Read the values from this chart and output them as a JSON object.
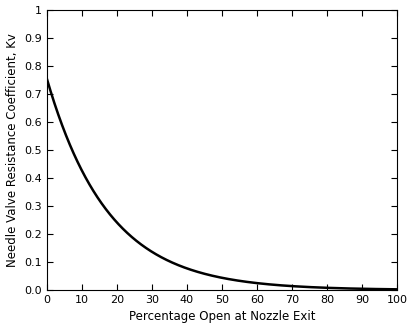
{
  "title": "",
  "xlabel": "Percentage Open at Nozzle Exit",
  "ylabel": "Needle Valve Resistance Coefficient, Kv",
  "xlim": [
    0,
    100
  ],
  "ylim": [
    0,
    1
  ],
  "xticks": [
    0,
    10,
    20,
    30,
    40,
    50,
    60,
    70,
    80,
    90,
    100
  ],
  "yticks": [
    0,
    0.1,
    0.2,
    0.3,
    0.4,
    0.5,
    0.6,
    0.7,
    0.8,
    0.9,
    1.0
  ],
  "curve_start_y": 0.755,
  "decay_rate": 0.057,
  "line_color": "#000000",
  "line_width": 1.8,
  "background_color": "#ffffff",
  "tick_label_fontsize": 8,
  "axis_label_fontsize": 8.5,
  "figsize": [
    4.13,
    3.29
  ],
  "dpi": 100
}
